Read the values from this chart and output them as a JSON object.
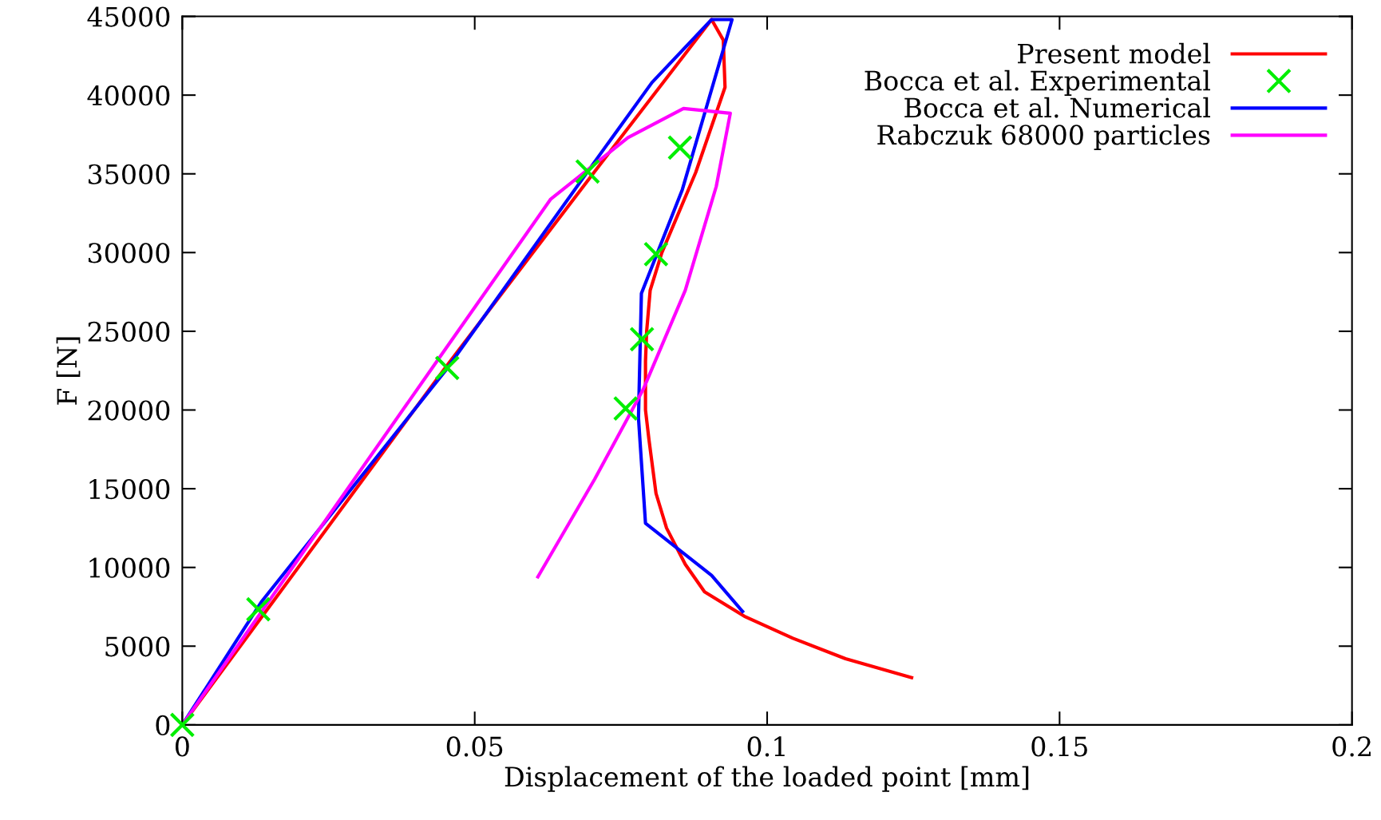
{
  "chart_data": {
    "type": "line",
    "xlabel": "Displacement of the loaded point [mm]",
    "ylabel": "F [N]",
    "xlim": [
      0,
      0.2
    ],
    "ylim": [
      0,
      45000
    ],
    "xticks": [
      0,
      0.05,
      0.1,
      0.15,
      0.2
    ],
    "yticks": [
      0,
      5000,
      10000,
      15000,
      20000,
      25000,
      30000,
      35000,
      40000,
      45000
    ],
    "grid": false,
    "legend": "top right",
    "series": [
      {
        "name": "Present model",
        "color": "#ff0000",
        "line_style": "solid",
        "x": [
          0,
          0.045,
          0.07,
          0.0905,
          0.0925,
          0.0928,
          0.0878,
          0.082,
          0.08,
          0.0794,
          0.0792,
          0.0792,
          0.0798,
          0.081,
          0.0828,
          0.086,
          0.0893,
          0.0961,
          0.1044,
          0.1134,
          0.1247
        ],
        "values": [
          0,
          22700,
          34900,
          44800,
          43500,
          40500,
          35100,
          30000,
          27600,
          25000,
          23100,
          20000,
          18100,
          14700,
          12500,
          10200,
          8450,
          6900,
          5500,
          4200,
          3000
        ]
      },
      {
        "name": "Bocca et al. Experimental",
        "type": "scatter",
        "color": "#00ee00",
        "marker": "cross",
        "x": [
          0,
          0.013,
          0.0453,
          0.0693,
          0.0851,
          0.081,
          0.0786,
          0.0758
        ],
        "values": [
          0,
          7340,
          22670,
          35150,
          36670,
          29900,
          24500,
          20100
        ]
      },
      {
        "name": "Bocca et al. Numerical",
        "color": "#0000ff",
        "line_style": "solid",
        "x": [
          0,
          0.0135,
          0.045,
          0.07,
          0.0803,
          0.0905,
          0.094,
          0.0855,
          0.0785,
          0.078,
          0.0792,
          0.0905,
          0.0958
        ],
        "values": [
          0,
          7800,
          22500,
          35500,
          40800,
          44800,
          44800,
          34000,
          27400,
          19500,
          12800,
          9500,
          7200
        ]
      },
      {
        "name": "Rabczuk 68000 particles",
        "color": "#ff00ff",
        "line_style": "solid",
        "x": [
          0,
          0.0441,
          0.063,
          0.0762,
          0.0857,
          0.0937,
          0.0913,
          0.086,
          0.0788,
          0.0705,
          0.0608
        ],
        "values": [
          0,
          23400,
          33400,
          37300,
          39150,
          38850,
          34200,
          27600,
          21300,
          15600,
          9400
        ]
      }
    ]
  }
}
